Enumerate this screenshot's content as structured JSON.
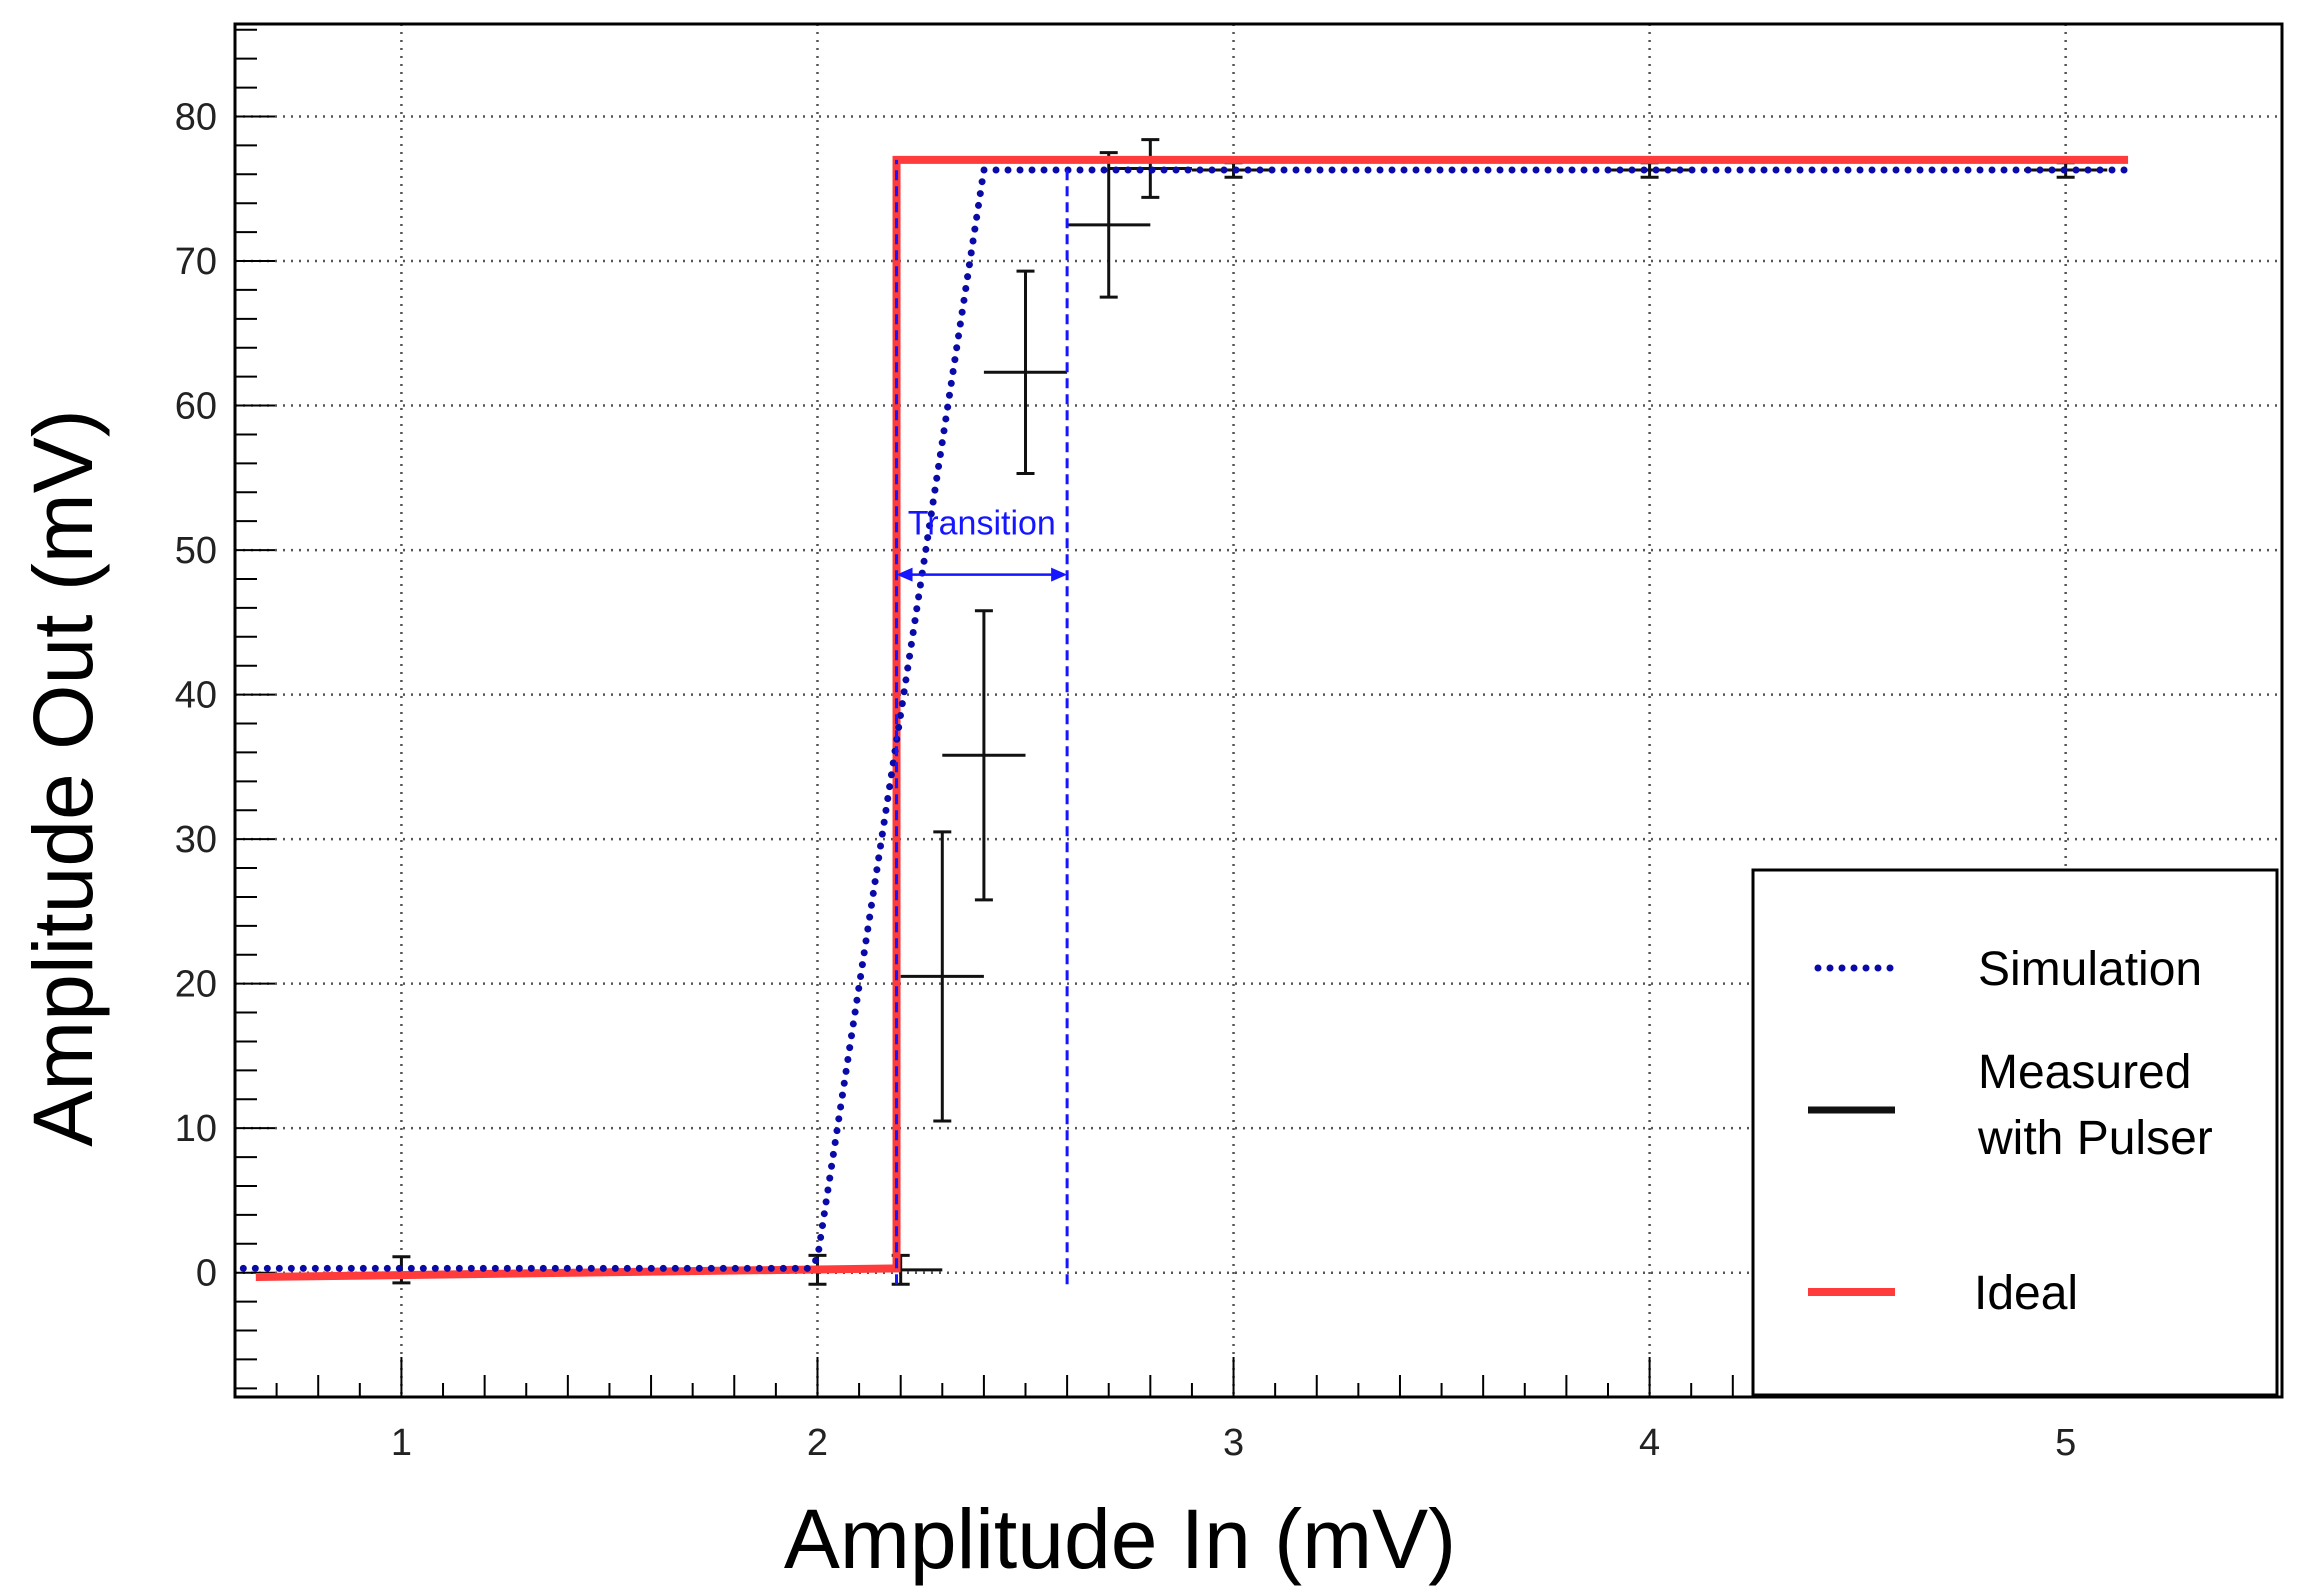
{
  "chart_data": {
    "type": "line",
    "xlabel": "Amplitude In (mV)",
    "ylabel": "Amplitude Out (mV)",
    "xlim": [
      0.6,
      5.52
    ],
    "ylim": [
      -8.6,
      86.4
    ],
    "x_ticks": [
      1,
      2,
      3,
      4,
      5
    ],
    "y_ticks": [
      0,
      10,
      20,
      30,
      40,
      50,
      60,
      70,
      80
    ],
    "grid": true,
    "legend_position": "bottom-right",
    "series": [
      {
        "name": "Simulation",
        "style": "dotted",
        "color": "#0a0aa8",
        "x": [
          0.62,
          1.98,
          2.0,
          2.4,
          5.15
        ],
        "y": [
          0.3,
          0.3,
          1.0,
          76.3,
          76.3
        ]
      },
      {
        "name": "Measured with Pulser",
        "style": "error-bars",
        "color": "#111111",
        "points": [
          {
            "x": 1.0,
            "y": 0.2,
            "xerr": 0.0,
            "yerr": 0.9
          },
          {
            "x": 2.0,
            "y": 0.2,
            "xerr": 0.0,
            "yerr": 1.0
          },
          {
            "x": 2.2,
            "y": 0.2,
            "xerr": 0.1,
            "yerr": 1.0
          },
          {
            "x": 2.3,
            "y": 20.5,
            "xerr": 0.1,
            "yerr": 10.0
          },
          {
            "x": 2.4,
            "y": 35.8,
            "xerr": 0.1,
            "yerr": 10.0
          },
          {
            "x": 2.5,
            "y": 62.3,
            "xerr": 0.1,
            "yerr": 7.0
          },
          {
            "x": 2.7,
            "y": 72.5,
            "xerr": 0.1,
            "yerr": 5.0
          },
          {
            "x": 2.8,
            "y": 76.4,
            "xerr": 0.1,
            "yerr": 2.0
          },
          {
            "x": 3.0,
            "y": 76.3,
            "xerr": 0.1,
            "yerr": 0.5
          },
          {
            "x": 4.0,
            "y": 76.3,
            "xerr": 0.1,
            "yerr": 0.5
          },
          {
            "x": 5.0,
            "y": 76.3,
            "xerr": 0.1,
            "yerr": 0.5
          }
        ]
      },
      {
        "name": "Ideal",
        "style": "solid",
        "color": "#ff3b3b",
        "x": [
          0.65,
          2.19,
          2.19,
          5.15
        ],
        "y": [
          -0.3,
          0.3,
          77.0,
          77.0
        ]
      }
    ],
    "annotations": [
      {
        "text": "Transition",
        "x_from": 2.19,
        "x_to": 2.6,
        "y": 48.3,
        "color": "#1515ff"
      }
    ],
    "guide_lines": [
      {
        "x": 2.19,
        "y_from": -0.8,
        "y_to": 77.0,
        "style": "dashed",
        "color": "#1515ff"
      },
      {
        "x": 2.6,
        "y_from": -0.8,
        "y_to": 76.3,
        "style": "dashed",
        "color": "#1515ff"
      }
    ]
  },
  "legend": {
    "items": [
      {
        "label_lines": [
          "Simulation"
        ],
        "series": "Simulation"
      },
      {
        "label_lines": [
          "Measured",
          "with Pulser"
        ],
        "series": "Measured with Pulser"
      },
      {
        "label_lines": [
          "Ideal"
        ],
        "series": "Ideal"
      }
    ]
  }
}
